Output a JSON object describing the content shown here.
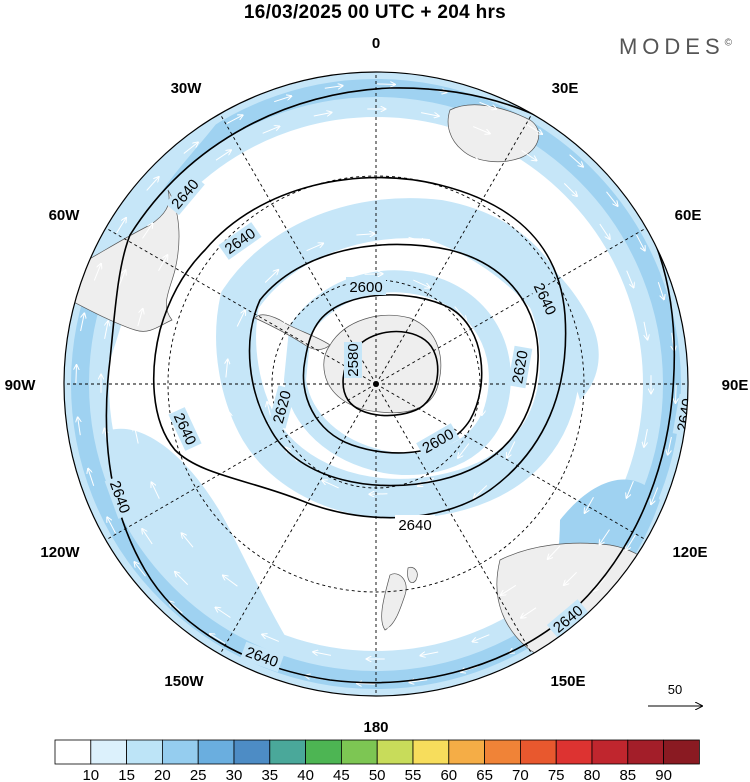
{
  "title": "16/03/2025  00 UTC  + 204 hrs",
  "brand": "MODES",
  "brand_mark": "©",
  "longitude_labels": {
    "top": "0",
    "n30e": "30E",
    "n60e": "60E",
    "e90": "90E",
    "s120e": "120E",
    "s150e": "150E",
    "bottom": "180",
    "s150w": "150W",
    "s120w": "120W",
    "w90": "90W",
    "n60w": "60W",
    "n30w": "30W"
  },
  "contour_labels": [
    "2580",
    "2600",
    "2620",
    "2640"
  ],
  "vector_reference": "50",
  "colorbar": {
    "levels": [
      "10",
      "15",
      "20",
      "25",
      "30",
      "35",
      "40",
      "45",
      "50",
      "55",
      "60",
      "65",
      "70",
      "75",
      "80",
      "85",
      "90"
    ],
    "colors": [
      "#ffffff",
      "#dcf1fc",
      "#bde4f7",
      "#95cdef",
      "#6aaedf",
      "#4d8cc5",
      "#4aa89a",
      "#4db553",
      "#7dc653",
      "#c8dc5a",
      "#f7dd5c",
      "#f5ad46",
      "#f08337",
      "#e8582e",
      "#dd3331",
      "#c0262e",
      "#a31e29",
      "#8a1a22"
    ]
  },
  "shading_colors": {
    "light": "#c6e6f8",
    "medium": "#9fd2f1",
    "strong": "#7fbde8",
    "land": "#eeeeee",
    "coast": "#555555"
  }
}
